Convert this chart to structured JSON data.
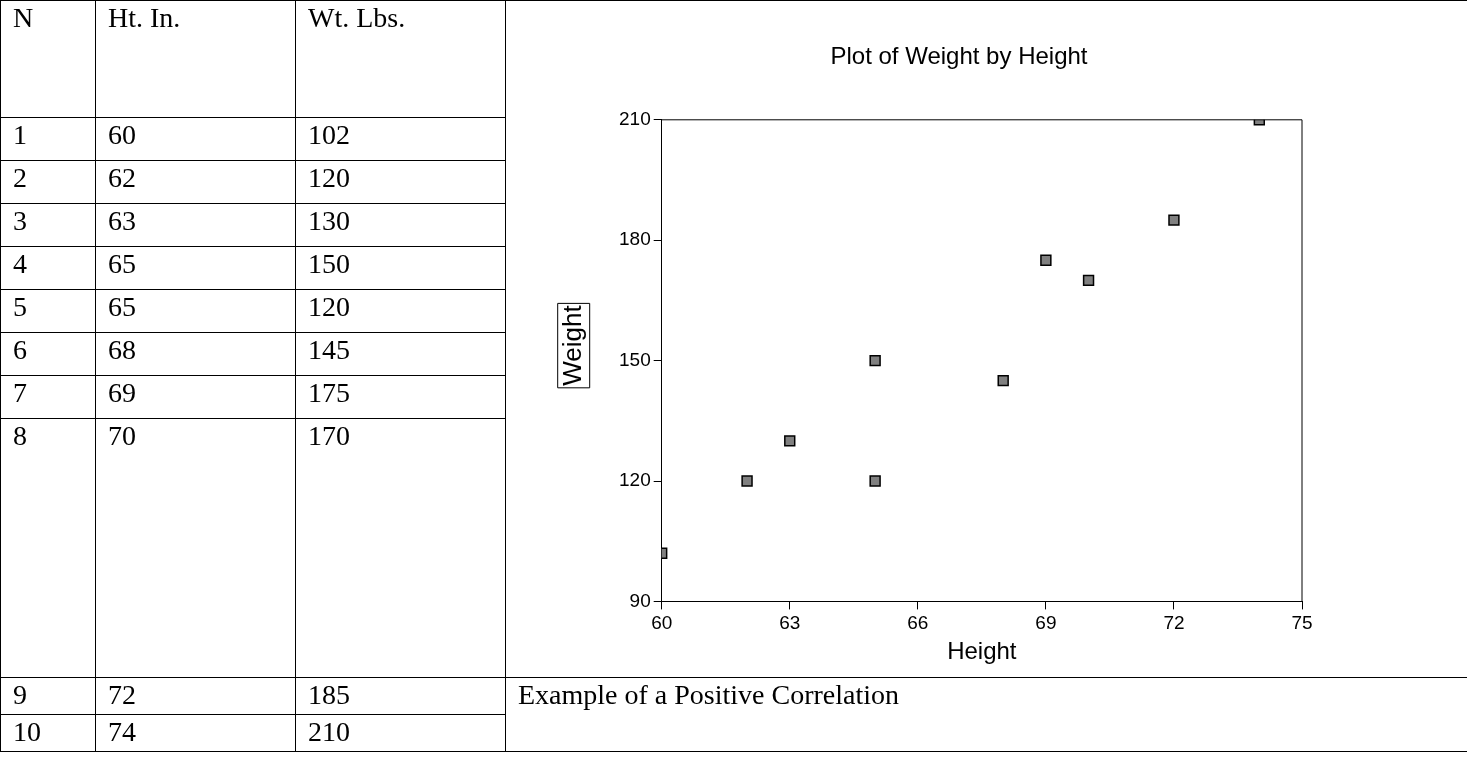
{
  "chart_data": {
    "type": "scatter",
    "title": "Plot of Weight by Height",
    "xlabel": "Height",
    "ylabel": "Weight",
    "x": [
      60,
      62,
      63,
      65,
      65,
      68,
      69,
      70,
      72,
      74
    ],
    "values": [
      102,
      120,
      130,
      150,
      120,
      145,
      175,
      170,
      185,
      210
    ],
    "color": "#808080",
    "marker": "square",
    "grid": false,
    "legend": false,
    "xlim": [
      60,
      75
    ],
    "xticks": [
      60,
      63,
      66,
      69,
      72,
      75
    ],
    "ylim": [
      90,
      210
    ],
    "yticks": [
      90,
      120,
      150,
      180,
      210
    ],
    "annotations": [
      "N",
      "Ht. In.",
      "Wt. Lbs.",
      "1",
      "60",
      "102",
      "2",
      "62",
      "120",
      "3",
      "63",
      "130",
      "4",
      "65",
      "150",
      "5",
      "65",
      "120",
      "6",
      "68",
      "145",
      "7",
      "69",
      "175",
      "8",
      "70",
      "170",
      "9",
      "72",
      "185",
      "10",
      "74",
      "210",
      "Example of a Positive Correlation"
    ]
  }
}
